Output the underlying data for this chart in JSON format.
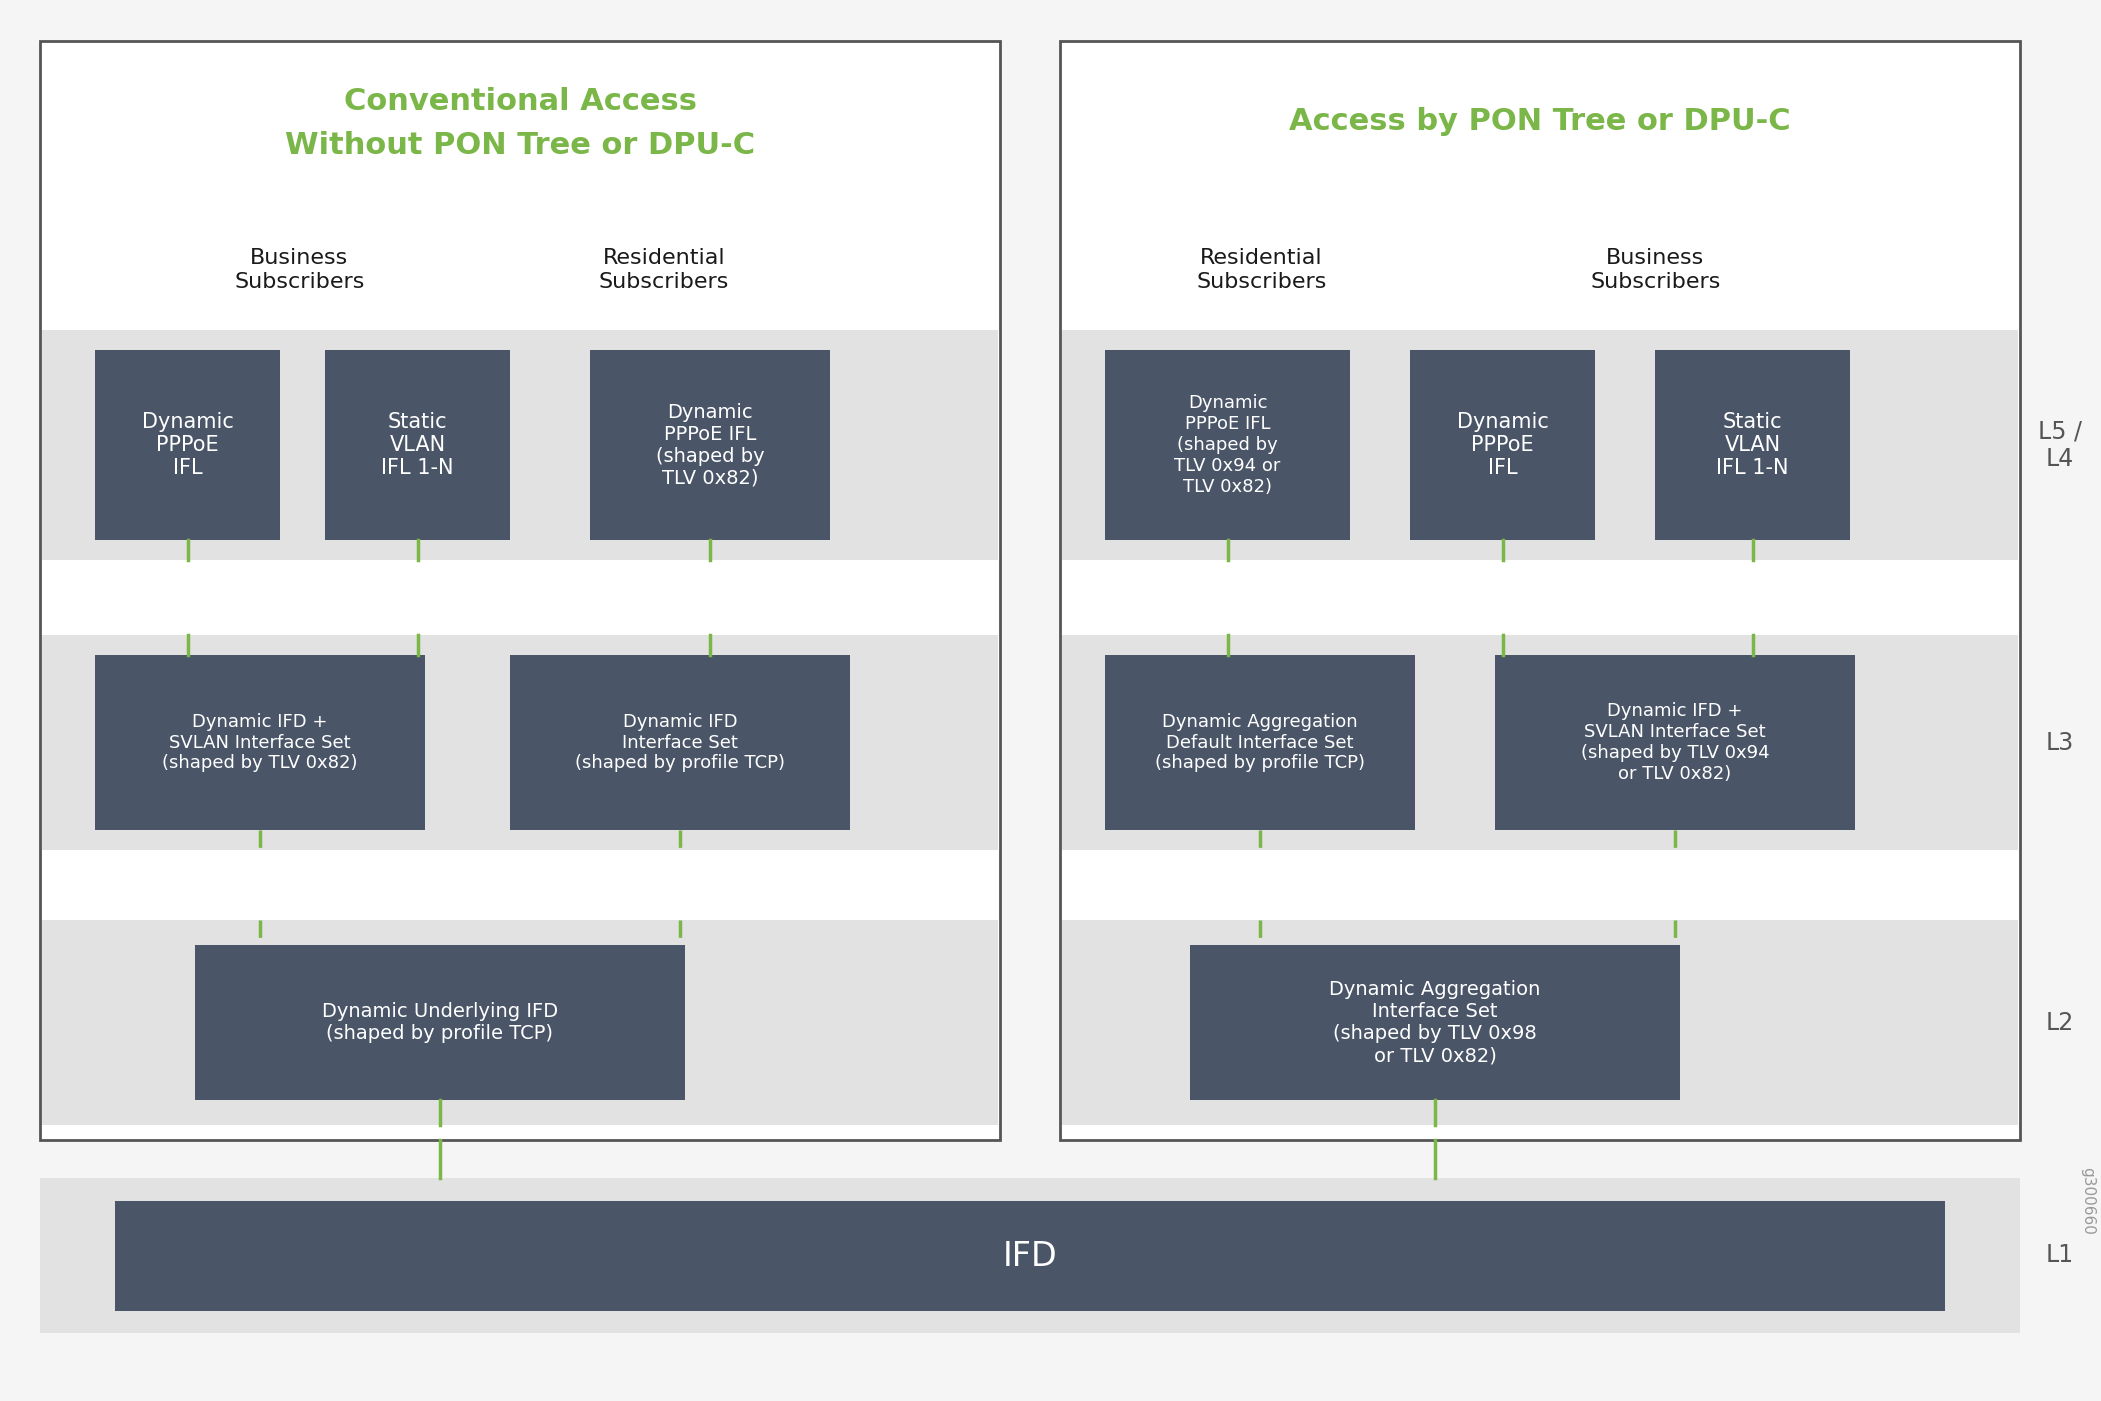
{
  "bg_color": "#f5f5f5",
  "panel_bg": "#ffffff",
  "outer_border_color": "#555555",
  "box_bg": "#4a5568",
  "box_text_color": "#ffffff",
  "row_bg_light": "#e2e2e2",
  "green_title_color": "#7ab648",
  "black_text": "#1a1a1a",
  "connector_color": "#7ab648",
  "level_label_color": "#555555",
  "ifd_bg": "#4a5568",
  "left_title_line1": "Conventional Access",
  "left_title_line2": "Without PON Tree or DPU-C",
  "right_title": "Access by PON Tree or DPU-C",
  "watermark": "g300660",
  "ifd_label": "IFD"
}
